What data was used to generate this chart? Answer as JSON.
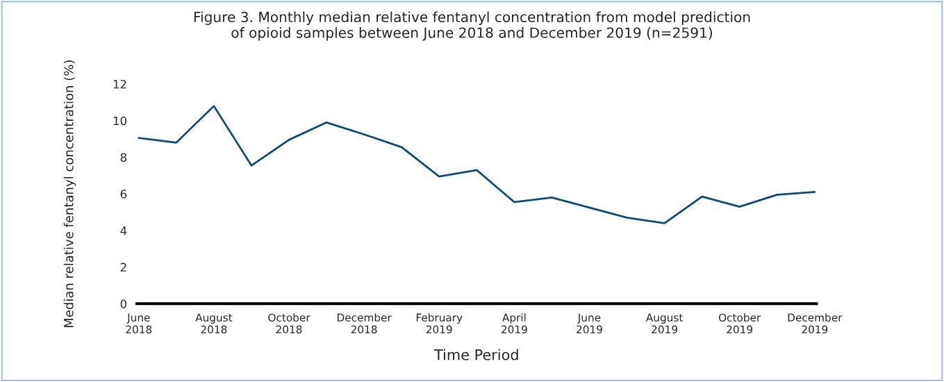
{
  "chart_data": {
    "type": "line",
    "title": "Figure 3. Monthly median relative fentanyl concentration from model prediction\nof opioid samples between June 2018 and December 2019 (n=2591)",
    "xlabel": "Time Period",
    "ylabel": "Median relative fentanyl concentration (%)",
    "categories": [
      "June\n2018",
      null,
      "August\n2018",
      null,
      "October\n2018",
      null,
      "December\n2018",
      null,
      "February\n2019",
      null,
      "April\n2019",
      null,
      "June\n2019",
      null,
      "August\n2019",
      null,
      "October\n2019",
      null,
      "December\n2019"
    ],
    "series": [
      {
        "color": "#0d4a74",
        "values": [
          9.05,
          8.8,
          10.8,
          7.55,
          8.95,
          9.9,
          9.25,
          8.55,
          6.95,
          7.3,
          5.55,
          5.8,
          5.25,
          4.7,
          4.4,
          5.85,
          5.3,
          5.95,
          6.1
        ]
      }
    ],
    "ylim": [
      0,
      12
    ],
    "yticks": [
      0,
      2,
      4,
      6,
      8,
      10,
      12
    ],
    "grid": false,
    "marker": "none",
    "line_style": "solid"
  }
}
